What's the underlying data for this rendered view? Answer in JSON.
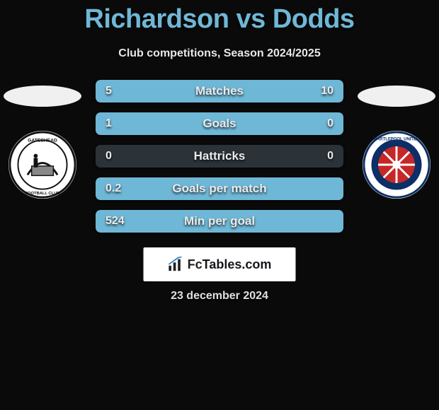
{
  "header": {
    "title": "Richardson vs Dodds",
    "subtitle": "Club competitions, Season 2024/2025",
    "title_color": "#6fb7d6"
  },
  "left_club": {
    "name": "Gateshead",
    "ellipse_color": "#f0f0f0"
  },
  "right_club": {
    "name": "Hartlepool United",
    "ellipse_color": "#f0f0f0"
  },
  "bars": {
    "background": "#2c3338",
    "fill_color": "#6fb7d6",
    "text_color": "#eaeaea",
    "rows": [
      {
        "label": "Matches",
        "left": "5",
        "right": "10",
        "left_pct": 33,
        "right_pct": 67
      },
      {
        "label": "Goals",
        "left": "1",
        "right": "0",
        "left_pct": 100,
        "right_pct": 0
      },
      {
        "label": "Hattricks",
        "left": "0",
        "right": "0",
        "left_pct": 0,
        "right_pct": 0
      },
      {
        "label": "Goals per match",
        "left": "0.2",
        "right": "",
        "left_pct": 100,
        "right_pct": 0
      },
      {
        "label": "Min per goal",
        "left": "524",
        "right": "",
        "left_pct": 100,
        "right_pct": 0
      }
    ]
  },
  "footer": {
    "brand_prefix": "Fc",
    "brand_rest": "Tables.com",
    "date": "23 december 2024"
  },
  "colors": {
    "page_bg": "#0a0a0a"
  }
}
